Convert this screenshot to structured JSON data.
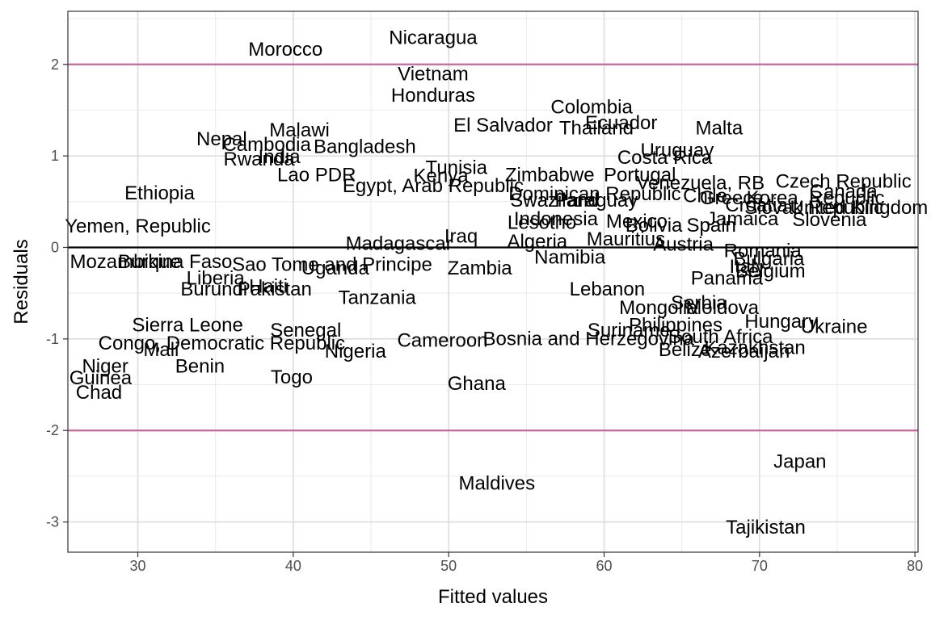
{
  "chart_data": {
    "type": "scatter",
    "title": "",
    "xlabel": "Fitted values",
    "ylabel": "Residuals",
    "xlim": [
      25.5,
      80.2
    ],
    "ylim": [
      -3.33,
      2.58
    ],
    "x_ticks": [
      30,
      40,
      50,
      60,
      70,
      80
    ],
    "y_ticks": [
      -3,
      -2,
      -1,
      0,
      1,
      2
    ],
    "x_tick_labels": [
      "30",
      "40",
      "50",
      "60",
      "70",
      "80"
    ],
    "y_tick_labels": [
      "-3",
      "-2",
      "-1",
      "0",
      "1",
      "2"
    ],
    "grid": true,
    "reference_lines": [
      {
        "y": 0,
        "color": "#000000"
      },
      {
        "y": 2,
        "color": "#c7679c"
      },
      {
        "y": -2,
        "color": "#c7679c"
      }
    ],
    "points": [
      {
        "label": "Nicaragua",
        "x": 49.0,
        "y": 2.29
      },
      {
        "label": "Morocco",
        "x": 39.5,
        "y": 2.16
      },
      {
        "label": "Vietnam",
        "x": 49.0,
        "y": 1.89
      },
      {
        "label": "Honduras",
        "x": 49.0,
        "y": 1.66
      },
      {
        "label": "Colombia",
        "x": 59.2,
        "y": 1.53
      },
      {
        "label": "El Salvador",
        "x": 53.5,
        "y": 1.33
      },
      {
        "label": "Ecuador",
        "x": 61.1,
        "y": 1.36
      },
      {
        "label": "Thailand",
        "x": 59.5,
        "y": 1.3
      },
      {
        "label": "Malta",
        "x": 67.4,
        "y": 1.3
      },
      {
        "label": "Nepal",
        "x": 35.4,
        "y": 1.18
      },
      {
        "label": "Malawi",
        "x": 40.4,
        "y": 1.28
      },
      {
        "label": "Cambodia",
        "x": 38.3,
        "y": 1.12
      },
      {
        "label": "Bangladesh",
        "x": 44.6,
        "y": 1.1
      },
      {
        "label": "Uruguay",
        "x": 64.7,
        "y": 1.06
      },
      {
        "label": "Costa Rica",
        "x": 63.9,
        "y": 0.98
      },
      {
        "label": "India",
        "x": 39.1,
        "y": 0.99
      },
      {
        "label": "Rwanda",
        "x": 37.8,
        "y": 0.96
      },
      {
        "label": "Tunisia",
        "x": 50.5,
        "y": 0.87
      },
      {
        "label": "Lao PDR",
        "x": 41.5,
        "y": 0.79
      },
      {
        "label": "Kenya",
        "x": 49.5,
        "y": 0.78
      },
      {
        "label": "Zimbabwe",
        "x": 56.5,
        "y": 0.79
      },
      {
        "label": "Portugal",
        "x": 62.3,
        "y": 0.79
      },
      {
        "label": "Ethiopia",
        "x": 31.4,
        "y": 0.59
      },
      {
        "label": "Egypt, Arab Republic",
        "x": 49.0,
        "y": 0.67
      },
      {
        "label": "Venezuela, RB",
        "x": 66.2,
        "y": 0.7
      },
      {
        "label": "Czech Republic",
        "x": 75.4,
        "y": 0.72
      },
      {
        "label": "Dominican Republic",
        "x": 59.4,
        "y": 0.58
      },
      {
        "label": "Chile",
        "x": 66.5,
        "y": 0.56
      },
      {
        "label": "Canada",
        "x": 75.4,
        "y": 0.61
      },
      {
        "label": "Swaziland",
        "x": 56.8,
        "y": 0.51
      },
      {
        "label": "Paraguay",
        "x": 59.5,
        "y": 0.51
      },
      {
        "label": "Greece",
        "x": 68.2,
        "y": 0.54
      },
      {
        "label": "Korea, Republic",
        "x": 73.6,
        "y": 0.54
      },
      {
        "label": "Croatia",
        "x": 69.8,
        "y": 0.46
      },
      {
        "label": "Slovak Republic",
        "x": 73.5,
        "y": 0.43
      },
      {
        "label": "United Kingdom",
        "x": 76.4,
        "y": 0.43
      },
      {
        "label": "Yemen, Republic",
        "x": 30.0,
        "y": 0.23
      },
      {
        "label": "Indonesia",
        "x": 56.9,
        "y": 0.31
      },
      {
        "label": "Lesotho",
        "x": 56.0,
        "y": 0.27
      },
      {
        "label": "Jamaica",
        "x": 68.9,
        "y": 0.31
      },
      {
        "label": "Mexico",
        "x": 62.1,
        "y": 0.28
      },
      {
        "label": "Bolivia",
        "x": 63.2,
        "y": 0.24
      },
      {
        "label": "Spain",
        "x": 66.9,
        "y": 0.24
      },
      {
        "label": "Slovenia",
        "x": 74.5,
        "y": 0.3
      },
      {
        "label": "Iraq",
        "x": 50.8,
        "y": 0.12
      },
      {
        "label": "Madagascar",
        "x": 46.8,
        "y": 0.04
      },
      {
        "label": "Algeria",
        "x": 55.7,
        "y": 0.06
      },
      {
        "label": "Mauritius",
        "x": 61.4,
        "y": 0.09
      },
      {
        "label": "Austria",
        "x": 65.1,
        "y": 0.03
      },
      {
        "label": "Romania",
        "x": 70.2,
        "y": -0.04
      },
      {
        "label": "Namibia",
        "x": 57.8,
        "y": -0.11
      },
      {
        "label": "Bulgaria",
        "x": 70.6,
        "y": -0.13
      },
      {
        "label": "Mozambique",
        "x": 29.2,
        "y": -0.16
      },
      {
        "label": "Burkina Faso",
        "x": 32.4,
        "y": -0.16
      },
      {
        "label": "Sao Tome and Principe",
        "x": 42.5,
        "y": -0.19
      },
      {
        "label": "Uganda",
        "x": 42.7,
        "y": -0.23
      },
      {
        "label": "Zambia",
        "x": 52.0,
        "y": -0.23
      },
      {
        "label": "Italy",
        "x": 69.2,
        "y": -0.21
      },
      {
        "label": "Belgium",
        "x": 70.7,
        "y": -0.26
      },
      {
        "label": "Panama",
        "x": 67.9,
        "y": -0.34
      },
      {
        "label": "Liberia",
        "x": 35.0,
        "y": -0.34
      },
      {
        "label": "Burundi",
        "x": 34.9,
        "y": -0.46
      },
      {
        "label": "Haiti",
        "x": 38.4,
        "y": -0.43
      },
      {
        "label": "Pakistan",
        "x": 38.8,
        "y": -0.46
      },
      {
        "label": "Lebanon",
        "x": 60.2,
        "y": -0.46
      },
      {
        "label": "Tanzania",
        "x": 45.4,
        "y": -0.55
      },
      {
        "label": "Serbia",
        "x": 66.1,
        "y": -0.61
      },
      {
        "label": "Mongolia",
        "x": 63.5,
        "y": -0.66
      },
      {
        "label": "Moldova",
        "x": 67.6,
        "y": -0.66
      },
      {
        "label": "Sierra Leone",
        "x": 33.2,
        "y": -0.85
      },
      {
        "label": "Philippines",
        "x": 64.6,
        "y": -0.85
      },
      {
        "label": "Hungary",
        "x": 71.4,
        "y": -0.81
      },
      {
        "label": "Ukraine",
        "x": 74.8,
        "y": -0.87
      },
      {
        "label": "Senegal",
        "x": 40.8,
        "y": -0.91
      },
      {
        "label": "Suriname",
        "x": 61.6,
        "y": -0.91
      },
      {
        "label": "South Africa",
        "x": 67.5,
        "y": -0.98
      },
      {
        "label": "Congo, Democratic Republic",
        "x": 35.4,
        "y": -1.05
      },
      {
        "label": "Cameroon",
        "x": 49.6,
        "y": -1.02
      },
      {
        "label": "Bosnia and Herzegovina",
        "x": 59.0,
        "y": -1.0
      },
      {
        "label": "Kazakhstan",
        "x": 69.7,
        "y": -1.1
      },
      {
        "label": "Mali",
        "x": 31.5,
        "y": -1.12
      },
      {
        "label": "Nigeria",
        "x": 44.0,
        "y": -1.14
      },
      {
        "label": "Belize",
        "x": 65.2,
        "y": -1.12
      },
      {
        "label": "Azerbaijan",
        "x": 69.0,
        "y": -1.14
      },
      {
        "label": "Niger",
        "x": 27.9,
        "y": -1.3
      },
      {
        "label": "Benin",
        "x": 34.0,
        "y": -1.3
      },
      {
        "label": "Guinea",
        "x": 27.6,
        "y": -1.43
      },
      {
        "label": "Togo",
        "x": 39.9,
        "y": -1.42
      },
      {
        "label": "Ghana",
        "x": 51.8,
        "y": -1.49
      },
      {
        "label": "Chad",
        "x": 27.5,
        "y": -1.59
      },
      {
        "label": "Japan",
        "x": 72.6,
        "y": -2.34
      },
      {
        "label": "Maldives",
        "x": 53.1,
        "y": -2.58
      },
      {
        "label": "Tajikistan",
        "x": 70.4,
        "y": -3.06
      }
    ]
  }
}
